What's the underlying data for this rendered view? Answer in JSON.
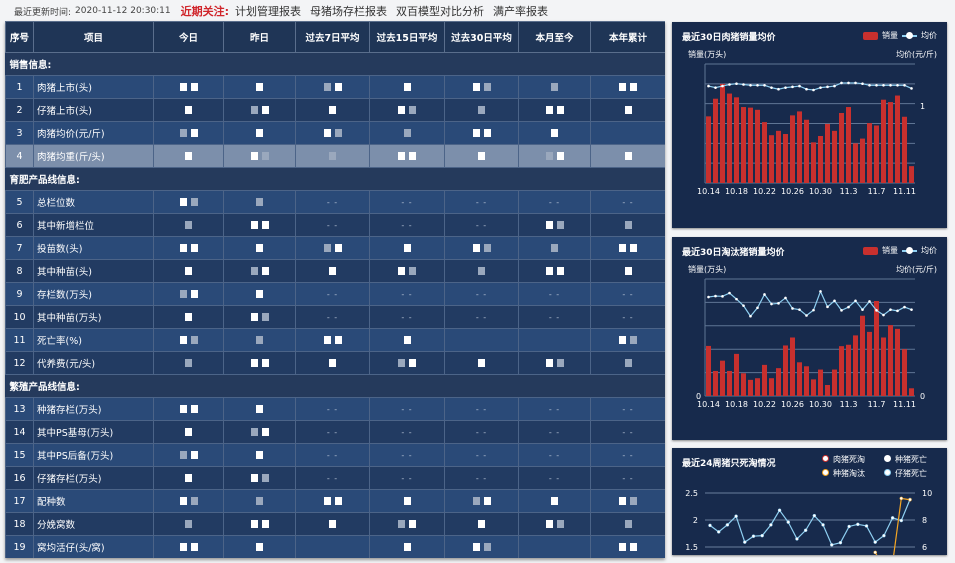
{
  "topbar": {
    "update_label": "最近更新时间:",
    "update_time": "2020-11-12 20:30:11",
    "focus_label": "近期关注:",
    "links": [
      "计划管理报表",
      "母猪场存栏报表",
      "双百模型对比分析",
      "满产率报表"
    ]
  },
  "table": {
    "headers": [
      "序号",
      "项目",
      "今日",
      "昨日",
      "过去7日平均",
      "过去15日平均",
      "过去30日平均",
      "本月至今",
      "本年累计"
    ],
    "sections": [
      {
        "title": "销售信息:",
        "rows": [
          {
            "no": "1",
            "item": "肉猪上市(头)",
            "cells": [
              "",
              "",
              "",
              "",
              "",
              "",
              ""
            ]
          },
          {
            "no": "2",
            "item": "仔猪上市(头)",
            "cells": [
              "",
              "",
              "",
              "",
              "",
              "",
              ""
            ]
          },
          {
            "no": "3",
            "item": "肉猪均价(元/斤)",
            "cells": [
              "",
              "",
              "",
              "",
              "",
              "",
              null
            ]
          },
          {
            "no": "4",
            "item": "肉猪均重(斤/头)",
            "cells": [
              "",
              "",
              "",
              "",
              "",
              "",
              ""
            ],
            "highlight": true
          }
        ]
      },
      {
        "title": "育肥产品线信息:",
        "rows": [
          {
            "no": "5",
            "item": "总栏位数",
            "cells": [
              "",
              "",
              "- -",
              "- -",
              "- -",
              "- -",
              "- -"
            ]
          },
          {
            "no": "6",
            "item": "其中新增栏位",
            "cells": [
              "",
              "",
              "- -",
              "- -",
              "- -",
              "",
              ""
            ]
          },
          {
            "no": "7",
            "item": "投苗数(头)",
            "cells": [
              "",
              "",
              "",
              "",
              "",
              "",
              ""
            ]
          },
          {
            "no": "8",
            "item": "其中种苗(头)",
            "cells": [
              "",
              "",
              "",
              "",
              "",
              "",
              ""
            ]
          },
          {
            "no": "9",
            "item": "存栏数(万头)",
            "cells": [
              "",
              "",
              "- -",
              "- -",
              "- -",
              "- -",
              "- -"
            ]
          },
          {
            "no": "10",
            "item": "其中种苗(万头)",
            "cells": [
              "",
              "",
              "- -",
              "- -",
              "- -",
              "- -",
              "- -"
            ]
          },
          {
            "no": "11",
            "item": "死亡率(%)",
            "cells": [
              "",
              "",
              "",
              "",
              null,
              null,
              ""
            ]
          },
          {
            "no": "12",
            "item": "代养费(元/头)",
            "cells": [
              "",
              "",
              "",
              "",
              "",
              "",
              ""
            ]
          }
        ]
      },
      {
        "title": "繁殖产品线信息:",
        "rows": [
          {
            "no": "13",
            "item": "种猪存栏(万头)",
            "cells": [
              "",
              "",
              "- -",
              "- -",
              "- -",
              "- -",
              "- -"
            ]
          },
          {
            "no": "14",
            "item": "其中PS基母(万头)",
            "cells": [
              "",
              "",
              "- -",
              "- -",
              "- -",
              "- -",
              "- -"
            ]
          },
          {
            "no": "15",
            "item": "其中PS后备(万头)",
            "cells": [
              "",
              "",
              "- -",
              "- -",
              "- -",
              "- -",
              "- -"
            ]
          },
          {
            "no": "16",
            "item": "仔猪存栏(万头)",
            "cells": [
              "",
              "",
              "- -",
              "- -",
              "- -",
              "- -",
              "- -"
            ]
          },
          {
            "no": "17",
            "item": "配种数",
            "cells": [
              "",
              "",
              "",
              "",
              "",
              "",
              ""
            ]
          },
          {
            "no": "18",
            "item": "分娩窝数",
            "cells": [
              "",
              "",
              "",
              "",
              "",
              "",
              ""
            ]
          },
          {
            "no": "19",
            "item": "窝均活仔(头/窝)",
            "cells": [
              "",
              "",
              null,
              "",
              "",
              null,
              ""
            ]
          }
        ]
      }
    ]
  },
  "colors": {
    "bar": "#c8302e",
    "line": "#8fd0f2",
    "orange": "#f5a623",
    "panel": "#172a4c"
  },
  "chart_data": [
    {
      "type": "bar+line",
      "title": "最近30日肉猪销量均价",
      "legend": [
        "销量",
        "均价"
      ],
      "ylabel_left": "销量(万头)",
      "ylabel_right": "均价(元/斤)",
      "categories": [
        "10.14",
        "10.15",
        "10.16",
        "10.17",
        "10.18",
        "10.19",
        "10.20",
        "10.21",
        "10.22",
        "10.23",
        "10.24",
        "10.25",
        "10.26",
        "10.27",
        "10.28",
        "10.29",
        "10.30",
        "10.31",
        "11.1",
        "11.2",
        "11.3",
        "11.4",
        "11.5",
        "11.6",
        "11.7",
        "11.8",
        "11.9",
        "11.10",
        "11.11",
        "11.12"
      ],
      "x_tick_labels": [
        "10.14",
        "10.18",
        "10.22",
        "10.26",
        "10.30",
        "11.3",
        "11.7",
        "11.11"
      ],
      "right_tick_labels": [
        "1"
      ],
      "bar_values": [
        3.36,
        4.25,
        5.0,
        4.51,
        4.32,
        3.83,
        3.8,
        3.69,
        3.07,
        2.41,
        2.63,
        2.47,
        3.41,
        3.61,
        3.19,
        2.05,
        2.37,
        2.98,
        2.63,
        3.53,
        3.83,
        2.0,
        2.24,
        3.02,
        2.9,
        4.2,
        4.08,
        4.41,
        3.34,
        0.85
      ],
      "line_values": [
        1.23,
        1.21,
        1.23,
        1.25,
        1.26,
        1.25,
        1.24,
        1.24,
        1.24,
        1.21,
        1.19,
        1.21,
        1.22,
        1.23,
        1.19,
        1.18,
        1.21,
        1.22,
        1.23,
        1.27,
        1.27,
        1.27,
        1.26,
        1.24,
        1.24,
        1.24,
        1.24,
        1.24,
        1.24,
        1.2
      ],
      "ylim_left": [
        0,
        6
      ],
      "ylim_right": [
        0,
        1.51
      ]
    },
    {
      "type": "bar+line",
      "title": "最近30日淘汰猪销量均价",
      "legend": [
        "销量",
        "均价"
      ],
      "ylabel_left": "销量(万头)",
      "ylabel_right": "均价(元/斤)",
      "categories": [
        "10.14",
        "10.15",
        "10.16",
        "10.17",
        "10.18",
        "10.19",
        "10.20",
        "10.21",
        "10.22",
        "10.23",
        "10.24",
        "10.25",
        "10.26",
        "10.27",
        "10.28",
        "10.29",
        "10.30",
        "10.31",
        "11.1",
        "11.2",
        "11.3",
        "11.4",
        "11.5",
        "11.6",
        "11.7",
        "11.8",
        "11.9",
        "11.10",
        "11.11",
        "11.12"
      ],
      "x_tick_labels": [
        "10.14",
        "10.18",
        "10.22",
        "10.26",
        "10.30",
        "11.3",
        "11.7",
        "11.11"
      ],
      "left_tick_labels": [
        "0"
      ],
      "right_tick_labels": [
        "0"
      ],
      "bar_values": [
        2.14,
        1.07,
        1.51,
        1.07,
        1.8,
        0.97,
        0.69,
        0.76,
        1.33,
        0.76,
        1.19,
        2.16,
        2.5,
        1.44,
        1.27,
        0.71,
        1.13,
        0.47,
        1.13,
        2.13,
        2.19,
        2.59,
        3.43,
        2.74,
        4.06,
        2.5,
        3.03,
        2.87,
        2.0,
        0.33
      ],
      "line_values": [
        4.23,
        4.27,
        4.26,
        4.4,
        4.14,
        3.86,
        3.41,
        3.77,
        4.34,
        3.93,
        3.96,
        4.19,
        3.74,
        3.69,
        3.44,
        3.67,
        4.47,
        3.81,
        4.07,
        3.66,
        3.8,
        4.07,
        3.69,
        4.04,
        3.66,
        3.46,
        3.69,
        3.64,
        3.8,
        3.69
      ],
      "ylim_left": [
        0,
        5
      ],
      "ylim_right": [
        0,
        5
      ]
    },
    {
      "type": "line",
      "title": "最近24周猪只死淘情况",
      "legend": [
        "肉猪死淘",
        "种猪死亡",
        "种猪淘汰",
        "仔猪死亡"
      ],
      "left_tick_labels": [
        "2.5",
        "2",
        "1.5"
      ],
      "right_tick_labels": [
        "10",
        "8",
        "6"
      ],
      "ylim_left": [
        1.5,
        2.5
      ],
      "ylim_right": [
        6,
        10
      ],
      "series": [
        {
          "name": "仔猪死亡",
          "axis": "left",
          "values": [
            1.9,
            1.78,
            1.91,
            2.07,
            1.59,
            1.7,
            1.71,
            1.91,
            2.18,
            1.96,
            1.65,
            1.81,
            2.08,
            1.91,
            1.54,
            1.58,
            1.88,
            1.92,
            1.89,
            1.59,
            1.71,
            2.04,
            1.99,
            2.38
          ]
        },
        {
          "name": "种猪淘汰",
          "axis": "right",
          "values": [
            null,
            null,
            null,
            null,
            null,
            null,
            null,
            null,
            null,
            null,
            null,
            null,
            null,
            null,
            null,
            null,
            null,
            null,
            null,
            5.6,
            4.5,
            4.8,
            9.6,
            9.5
          ]
        }
      ]
    }
  ]
}
